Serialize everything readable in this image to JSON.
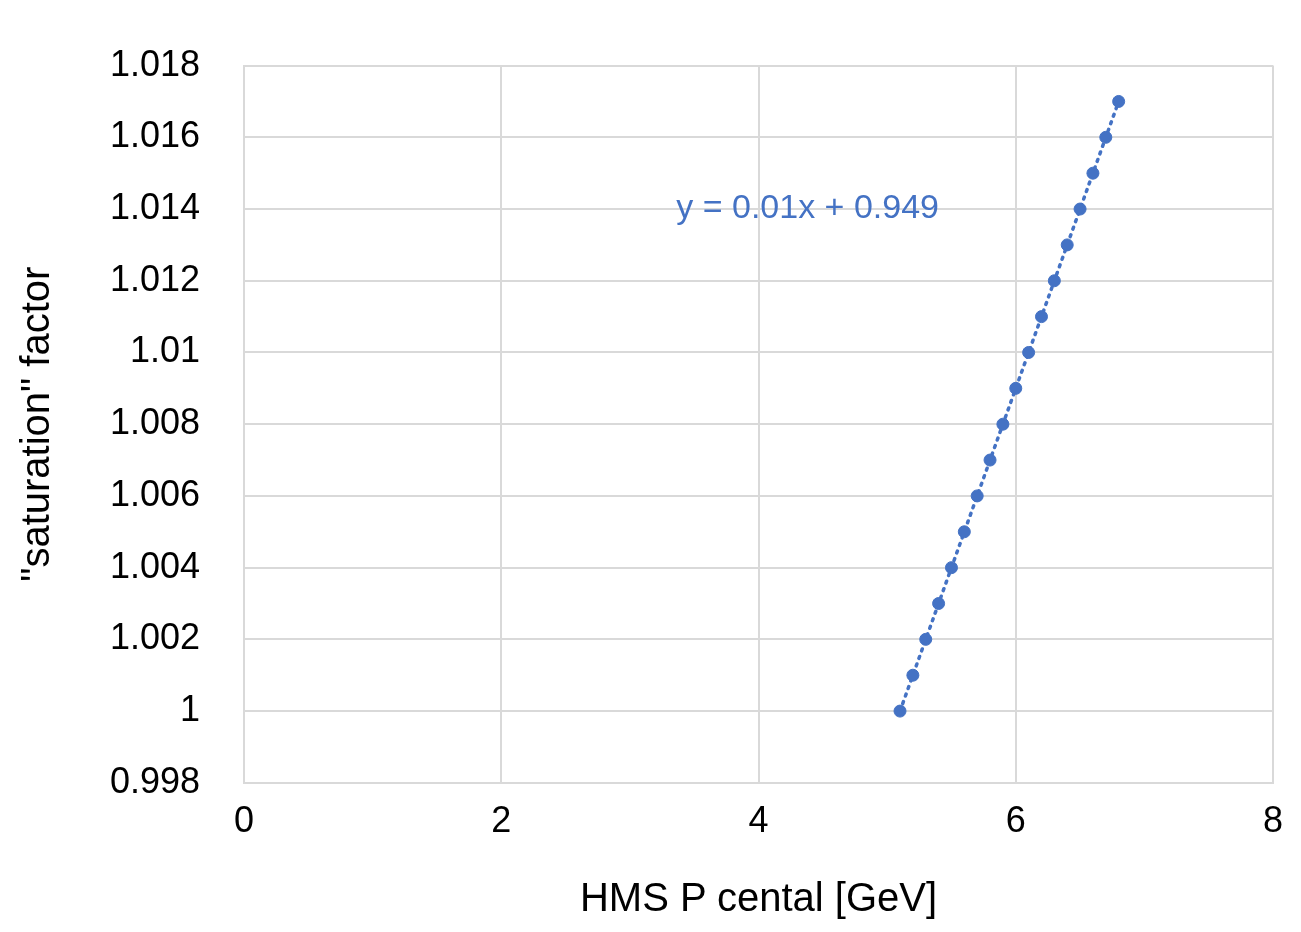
{
  "chart_data": {
    "type": "scatter",
    "xlabel": "HMS P cental [GeV]",
    "ylabel": "\"saturation\" factor",
    "annotations": [
      "y = 0.01x + 0.949"
    ],
    "series": [
      {
        "color": "#4472c4",
        "x": [
          5.1,
          5.2,
          5.3,
          5.4,
          5.5,
          5.6,
          5.7,
          5.8,
          5.9,
          6.0,
          6.1,
          6.2,
          6.3,
          6.4,
          6.5,
          6.6,
          6.7,
          6.8
        ],
        "values": [
          1.0,
          1.001,
          1.002,
          1.003,
          1.004,
          1.005,
          1.006,
          1.007,
          1.008,
          1.009,
          1.01,
          1.011,
          1.012,
          1.013,
          1.014,
          1.015,
          1.016,
          1.017
        ],
        "marker": "circle"
      },
      {
        "type": "line",
        "color": "#4472c4",
        "x": [
          5.1,
          6.8
        ],
        "values": [
          1.0,
          1.017
        ],
        "marker": "none",
        "line_style": "dotted"
      }
    ],
    "xlim": [
      0,
      8
    ],
    "xticks": [
      0,
      2,
      4,
      6,
      8
    ],
    "ylim": [
      0.998,
      1.018
    ],
    "yticks": [
      0.998,
      1,
      1.002,
      1.004,
      1.006,
      1.008,
      1.01,
      1.012,
      1.014,
      1.016,
      1.018
    ],
    "grid": true,
    "legend": false
  }
}
